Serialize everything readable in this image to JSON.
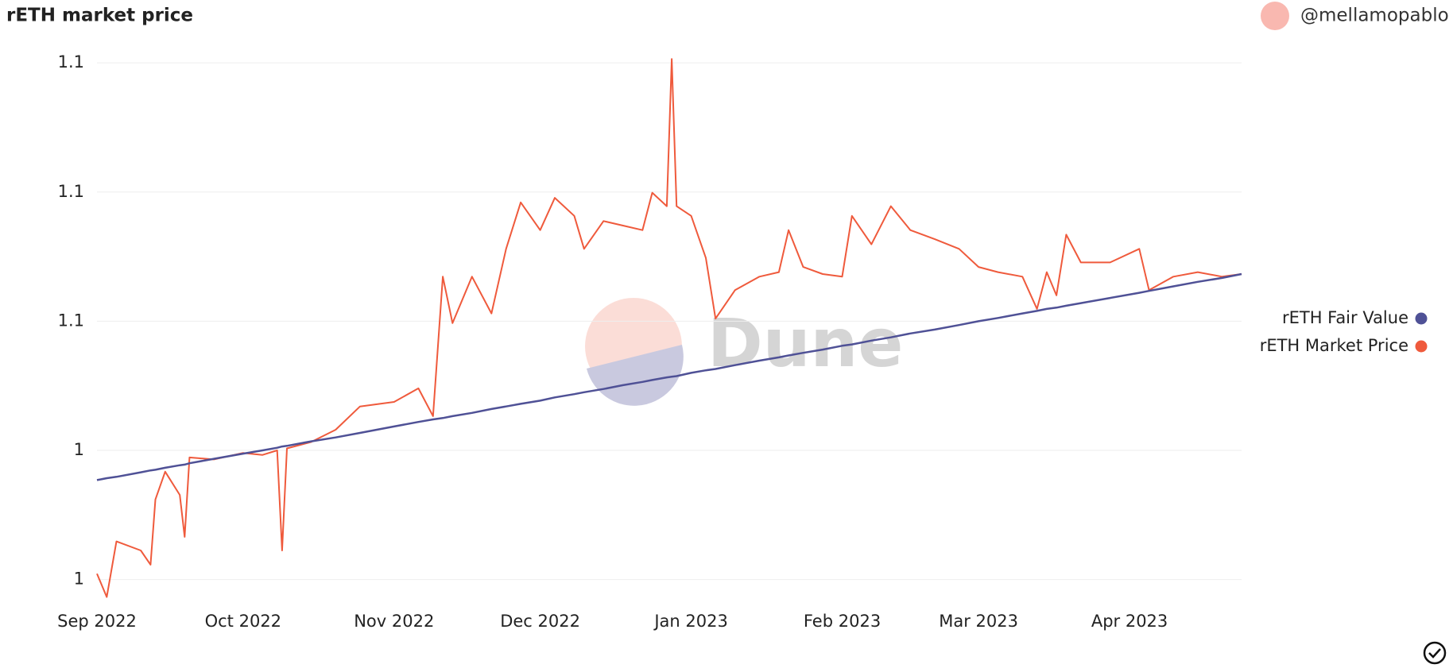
{
  "chart_data": {
    "type": "line",
    "title": "rETH market price",
    "author": "@mellamopablo",
    "x": [
      "2022-09-01",
      "2022-09-03",
      "2022-09-05",
      "2022-09-10",
      "2022-09-12",
      "2022-09-13",
      "2022-09-15",
      "2022-09-18",
      "2022-09-19",
      "2022-09-20",
      "2022-09-25",
      "2022-10-01",
      "2022-10-05",
      "2022-10-08",
      "2022-10-09",
      "2022-10-10",
      "2022-10-15",
      "2022-10-20",
      "2022-10-25",
      "2022-11-01",
      "2022-11-06",
      "2022-11-09",
      "2022-11-11",
      "2022-11-13",
      "2022-11-17",
      "2022-11-21",
      "2022-11-24",
      "2022-11-27",
      "2022-12-01",
      "2022-12-04",
      "2022-12-08",
      "2022-12-10",
      "2022-12-14",
      "2022-12-18",
      "2022-12-22",
      "2022-12-24",
      "2022-12-27",
      "2022-12-28",
      "2022-12-29",
      "2023-01-01",
      "2023-01-04",
      "2023-01-06",
      "2023-01-10",
      "2023-01-15",
      "2023-01-19",
      "2023-01-21",
      "2023-01-24",
      "2023-01-28",
      "2023-02-01",
      "2023-02-03",
      "2023-02-07",
      "2023-02-11",
      "2023-02-15",
      "2023-02-20",
      "2023-02-25",
      "2023-03-01",
      "2023-03-05",
      "2023-03-10",
      "2023-03-13",
      "2023-03-15",
      "2023-03-17",
      "2023-03-19",
      "2023-03-22",
      "2023-03-28",
      "2023-04-03",
      "2023-04-05",
      "2023-04-10",
      "2023-04-15",
      "2023-04-20",
      "2023-04-24"
    ],
    "series": [
      {
        "name": "rETH Fair Value",
        "color": "#4f5196",
        "values": [
          1.0354,
          1.0357,
          1.0359,
          1.0366,
          1.0369,
          1.037,
          1.0373,
          1.0377,
          1.0378,
          1.038,
          1.0387,
          1.0395,
          1.04,
          1.0404,
          1.0406,
          1.0407,
          1.0414,
          1.042,
          1.0427,
          1.0437,
          1.0444,
          1.0448,
          1.045,
          1.0453,
          1.0458,
          1.0464,
          1.0468,
          1.0472,
          1.0477,
          1.0482,
          1.0487,
          1.049,
          1.0495,
          1.0501,
          1.0506,
          1.0509,
          1.0513,
          1.0514,
          1.0515,
          1.052,
          1.0524,
          1.0526,
          1.0532,
          1.0539,
          1.0544,
          1.0547,
          1.0551,
          1.0556,
          1.0562,
          1.0564,
          1.057,
          1.0575,
          1.0581,
          1.0587,
          1.0594,
          1.06,
          1.0605,
          1.0612,
          1.0616,
          1.0619,
          1.0621,
          1.0624,
          1.0628,
          1.0636,
          1.0644,
          1.0647,
          1.0654,
          1.0661,
          1.0667,
          1.0673
        ]
      },
      {
        "name": "rETH Market Price",
        "color": "#ef5a3c",
        "values": [
          1.0209,
          1.0173,
          1.0259,
          1.0245,
          1.0223,
          1.0324,
          1.0367,
          1.0331,
          1.0266,
          1.0389,
          1.0386,
          1.0396,
          1.0393,
          1.04,
          1.0245,
          1.0403,
          1.0413,
          1.0432,
          1.0468,
          1.0475,
          1.0496,
          1.0453,
          1.0669,
          1.0597,
          1.0669,
          1.0612,
          1.0712,
          1.0784,
          1.0741,
          1.0791,
          1.0763,
          1.0712,
          1.0755,
          1.0748,
          1.0741,
          1.0799,
          1.0778,
          1.1006,
          1.0778,
          1.0763,
          1.0698,
          1.0604,
          1.0648,
          1.0669,
          1.0676,
          1.0741,
          1.0684,
          1.0673,
          1.0669,
          1.0763,
          1.0719,
          1.0778,
          1.0741,
          1.0727,
          1.0712,
          1.0684,
          1.0676,
          1.0669,
          1.0619,
          1.0676,
          1.064,
          1.0734,
          1.0691,
          1.0691,
          1.0712,
          1.0648,
          1.0669,
          1.0676,
          1.0669,
          1.0673
        ]
      }
    ],
    "xlim": [
      "2022-09-01",
      "2023-04-24"
    ],
    "xticks": [
      {
        "value": "2022-09-01",
        "label": "Sep 2022"
      },
      {
        "value": "2022-10-01",
        "label": "Oct 2022"
      },
      {
        "value": "2022-11-01",
        "label": "Nov 2022"
      },
      {
        "value": "2022-12-01",
        "label": "Dec 2022"
      },
      {
        "value": "2023-01-01",
        "label": "Jan 2023"
      },
      {
        "value": "2023-02-01",
        "label": "Feb 2023"
      },
      {
        "value": "2023-03-01",
        "label": "Mar 2023"
      },
      {
        "value": "2023-04-01",
        "label": "Apr 2023"
      }
    ],
    "ylim": [
      1.017,
      1.101
    ],
    "yticks": [
      {
        "value": 1.02,
        "label": "1"
      },
      {
        "value": 1.04,
        "label": "1"
      },
      {
        "value": 1.06,
        "label": "1.1"
      },
      {
        "value": 1.08,
        "label": "1.1"
      },
      {
        "value": 1.1,
        "label": "1.1"
      }
    ],
    "grid": true,
    "legend": "right",
    "watermark": "Dune"
  }
}
